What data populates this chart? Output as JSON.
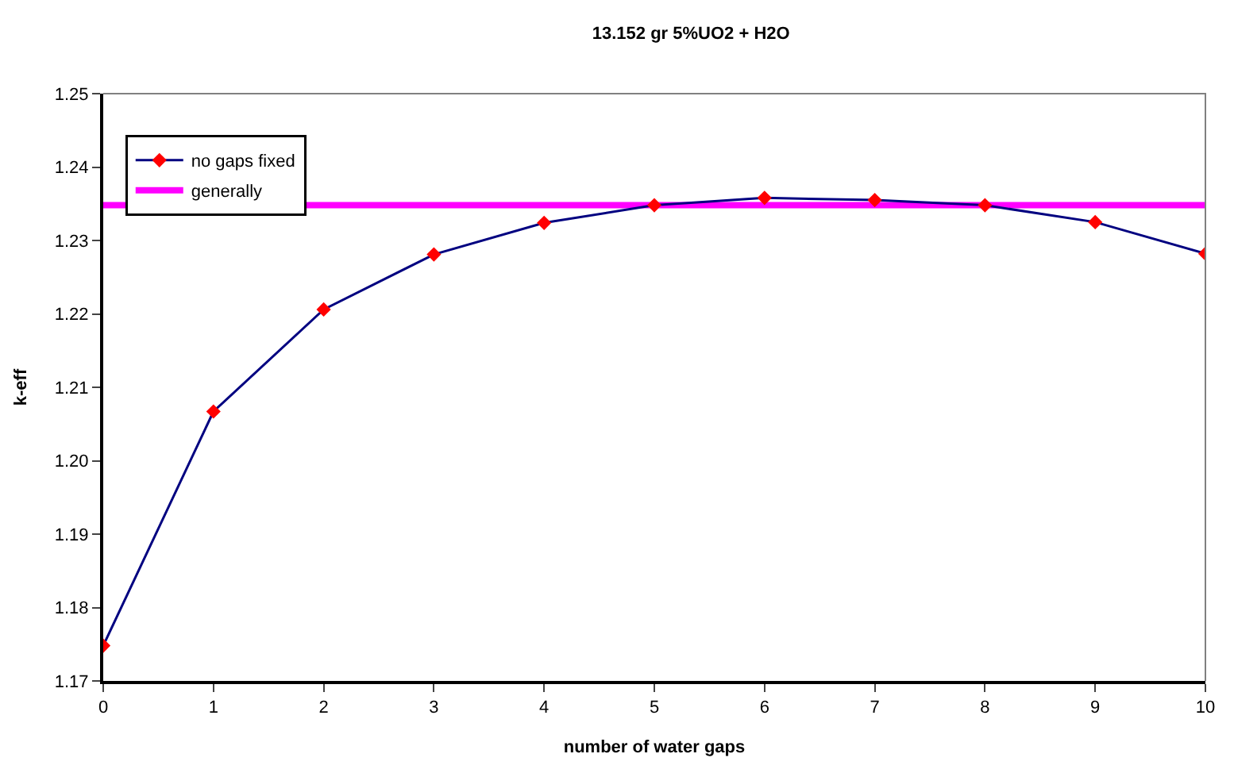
{
  "chart_data": {
    "type": "line",
    "title": "13.152 gr 5%UO2 + H2O",
    "xlabel": "number of water gaps",
    "ylabel": "k-eff",
    "x": [
      0,
      1,
      2,
      3,
      4,
      5,
      6,
      7,
      8,
      9,
      10
    ],
    "series": [
      {
        "name": "no gaps fixed",
        "color": "#000080",
        "colors": [
          "#ff0000",
          "#ff0000",
          "#ff0000",
          "#ff0000",
          "#ff0000",
          "#ff0000",
          "#ff0000",
          "#ff0000",
          "#ff0000",
          "#ff0000",
          "#ff0000"
        ],
        "values": [
          1.1748,
          1.2067,
          1.2206,
          1.2281,
          1.2324,
          1.2348,
          1.2358,
          1.2355,
          1.2348,
          1.2325,
          1.2282
        ]
      }
    ],
    "ref_lines": [
      {
        "axis": "y",
        "value": 1.2348,
        "label": "generally",
        "color": "#ff00ff"
      }
    ],
    "xlim": [
      0,
      10
    ],
    "xticks": [
      0,
      1,
      2,
      3,
      4,
      5,
      6,
      7,
      8,
      9,
      10
    ],
    "ylim": [
      1.17,
      1.25
    ],
    "yticks": [
      {
        "value": 1.17,
        "label": "1.17"
      },
      {
        "value": 1.18,
        "label": "1.18"
      },
      {
        "value": 1.19,
        "label": "1.19"
      },
      {
        "value": 1.2,
        "label": "1.20"
      },
      {
        "value": 1.21,
        "label": "1.21"
      },
      {
        "value": 1.22,
        "label": "1.22"
      },
      {
        "value": 1.23,
        "label": "1.23"
      },
      {
        "value": 1.24,
        "label": "1.24"
      },
      {
        "value": 1.25,
        "label": "1.25"
      }
    ],
    "marker": "diamond",
    "line_style": "solid",
    "legend": "top left"
  }
}
